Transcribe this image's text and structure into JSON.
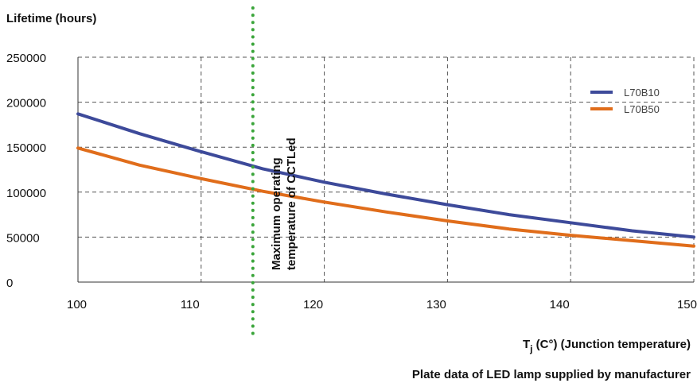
{
  "chart_data": {
    "type": "line",
    "ylabel": "Lifetime (hours)",
    "xlabel_main": "T",
    "xlabel_sub": "j",
    "xlabel_rest": " (C°) (Junction temperature)",
    "caption": "Plate data of LED lamp supplied by manufacturer",
    "xlim": [
      100,
      150
    ],
    "ylim": [
      0,
      250000
    ],
    "x_ticks": [
      100,
      110,
      120,
      130,
      140,
      150
    ],
    "y_ticks": [
      0,
      50000,
      100000,
      150000,
      200000,
      250000
    ],
    "grid": true,
    "legend_position": "top-right",
    "series": [
      {
        "name": "L70B10",
        "color": "#3d4a9a",
        "x": [
          100,
          105,
          110,
          115,
          120,
          125,
          130,
          135,
          140,
          145,
          150
        ],
        "y": [
          187000,
          165000,
          145000,
          126000,
          111000,
          98000,
          86000,
          75000,
          66000,
          57000,
          50000
        ]
      },
      {
        "name": "L70B50",
        "color": "#e06d1b",
        "x": [
          100,
          105,
          110,
          115,
          120,
          125,
          130,
          135,
          140,
          145,
          150
        ],
        "y": [
          149000,
          130000,
          115000,
          101000,
          89000,
          78000,
          68000,
          59000,
          52000,
          46000,
          40000
        ]
      }
    ],
    "marker_line": {
      "x": 114.2,
      "color": "#3aa53a",
      "label_line1": "Maximum operating",
      "label_line2": "temperature of CCTLed"
    }
  }
}
